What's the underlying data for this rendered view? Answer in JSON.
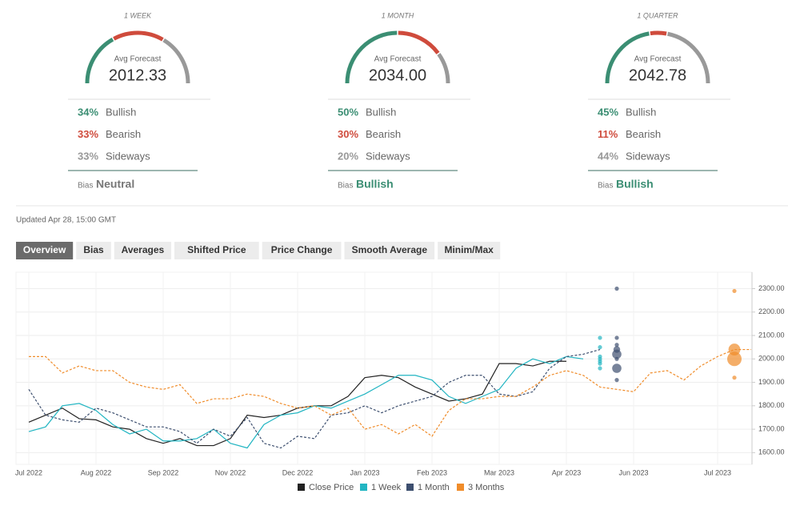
{
  "gauges": [
    {
      "period": "1 WEEK",
      "label": "Avg Forecast",
      "value": "2012.33",
      "bullish": {
        "value": 34,
        "label": "34%"
      },
      "bearish": {
        "value": 33,
        "label": "33%"
      },
      "sideways": {
        "value": 33,
        "label": "33%"
      },
      "bias": "Neutral",
      "bias_color": "#777777"
    },
    {
      "period": "1 MONTH",
      "label": "Avg Forecast",
      "value": "2034.00",
      "bullish": {
        "value": 50,
        "label": "50%"
      },
      "bearish": {
        "value": 30,
        "label": "30%"
      },
      "sideways": {
        "value": 20,
        "label": "20%"
      },
      "bias": "Bullish",
      "bias_color": "#3b8e73"
    },
    {
      "period": "1 QUARTER",
      "label": "Avg Forecast",
      "value": "2042.78",
      "bullish": {
        "value": 45,
        "label": "45%"
      },
      "bearish": {
        "value": 11,
        "label": "11%"
      },
      "sideways": {
        "value": 44,
        "label": "44%"
      },
      "bias": "Bullish",
      "bias_color": "#3b8e73"
    }
  ],
  "row_labels": {
    "bullish": "Bullish",
    "bearish": "Bearish",
    "sideways": "Sideways",
    "bias": "Bias"
  },
  "colors": {
    "bullish": "#3b8e73",
    "bearish": "#cf4b3c",
    "sideways": "#999999"
  },
  "updated": "Updated Apr 28, 15:00 GMT",
  "tabs": [
    "Overview",
    "Bias",
    "Averages",
    "Shifted Price",
    "Price Change",
    "Smooth Average",
    "Minim/Max"
  ],
  "chart_data": {
    "type": "line",
    "categories": [
      "Jul 2022",
      null,
      null,
      null,
      "Aug 2022",
      null,
      null,
      null,
      "Sep 2022",
      null,
      null,
      null,
      "Nov 2022",
      null,
      null,
      null,
      "Dec 2022",
      null,
      null,
      null,
      "Jan 2023",
      null,
      null,
      null,
      "Feb 2023",
      null,
      null,
      null,
      "Mar 2023",
      null,
      null,
      null,
      "Apr 2023",
      null,
      null,
      null,
      "Jun 2023",
      null,
      null,
      null,
      null,
      "Jul 2023",
      null,
      null
    ],
    "ylim": [
      1550,
      2370
    ],
    "yticks": [
      {
        "value": 1600,
        "label": "1600.00"
      },
      {
        "value": 1700,
        "label": "1700.00"
      },
      {
        "value": 1800,
        "label": "1800.00"
      },
      {
        "value": 1900,
        "label": "1900.00"
      },
      {
        "value": 2000,
        "label": "2000.00"
      },
      {
        "value": 2100,
        "label": "2100.00"
      },
      {
        "value": 2200,
        "label": "2200.00"
      },
      {
        "value": 2300,
        "label": "2300.00"
      }
    ],
    "grid": true,
    "series": [
      {
        "name": "Close Price",
        "color": "#222222",
        "dash": false,
        "values": [
          1730,
          1760,
          1790,
          1745,
          1740,
          1710,
          1700,
          1660,
          1640,
          1660,
          1630,
          1630,
          1660,
          1760,
          1750,
          1760,
          1790,
          1800,
          1800,
          1840,
          1920,
          1930,
          1920,
          1880,
          1850,
          1820,
          1830,
          1850,
          1980,
          1980,
          1970,
          1990,
          1990,
          null,
          null,
          null,
          null,
          null,
          null,
          null,
          null,
          null,
          null,
          null
        ]
      },
      {
        "name": "1 Week",
        "color": "#22b5c2",
        "dash": false,
        "values": [
          1690,
          1710,
          1800,
          1810,
          1780,
          1720,
          1680,
          1700,
          1650,
          1650,
          1660,
          1700,
          1640,
          1620,
          1720,
          1760,
          1770,
          1800,
          1790,
          1820,
          1850,
          1890,
          1930,
          1930,
          1910,
          1840,
          1810,
          1840,
          1870,
          1960,
          2000,
          1980,
          2010,
          2000,
          null,
          null,
          null,
          null,
          null,
          null,
          null,
          null,
          null,
          null
        ],
        "forecast": {
          "x": 34,
          "values": [
            2090,
            2050,
            2010,
            2000,
            1990,
            1980,
            1960
          ],
          "sizes": [
            1,
            1,
            1,
            1,
            1,
            1,
            1
          ]
        }
      },
      {
        "name": "1 Month",
        "color": "#3d4f6f",
        "dash": true,
        "values": [
          1870,
          1760,
          1740,
          1730,
          1790,
          1770,
          1740,
          1710,
          1710,
          1690,
          1640,
          1700,
          1670,
          1750,
          1640,
          1620,
          1670,
          1660,
          1760,
          1770,
          1800,
          1770,
          1800,
          1820,
          1840,
          1900,
          1930,
          1930,
          1850,
          1840,
          1860,
          1960,
          2010,
          2020,
          2040,
          null,
          null,
          null,
          null,
          null,
          null,
          null,
          null,
          null
        ],
        "forecast": {
          "x": 35,
          "values": [
            2300,
            2090,
            2060,
            2040,
            2020,
            2000,
            1960,
            1910
          ],
          "sizes": [
            1,
            1,
            1,
            2,
            3,
            1,
            3,
            1
          ]
        }
      },
      {
        "name": "3 Months",
        "color": "#f08c2a",
        "dash": true,
        "values": [
          2010,
          2010,
          1940,
          1970,
          1950,
          1950,
          1900,
          1880,
          1870,
          1890,
          1810,
          1830,
          1830,
          1850,
          1840,
          1810,
          1790,
          1800,
          1760,
          1790,
          1700,
          1720,
          1680,
          1720,
          1670,
          1780,
          1830,
          1830,
          1840,
          1840,
          1880,
          1930,
          1950,
          1930,
          1880,
          1870,
          1860,
          1940,
          1950,
          1910,
          1970,
          2010,
          2040,
          2040
        ],
        "forecast": {
          "x": 42,
          "values": [
            2290,
            2040,
            2000,
            1920
          ],
          "sizes": [
            1,
            4,
            5,
            1
          ]
        }
      }
    ]
  }
}
